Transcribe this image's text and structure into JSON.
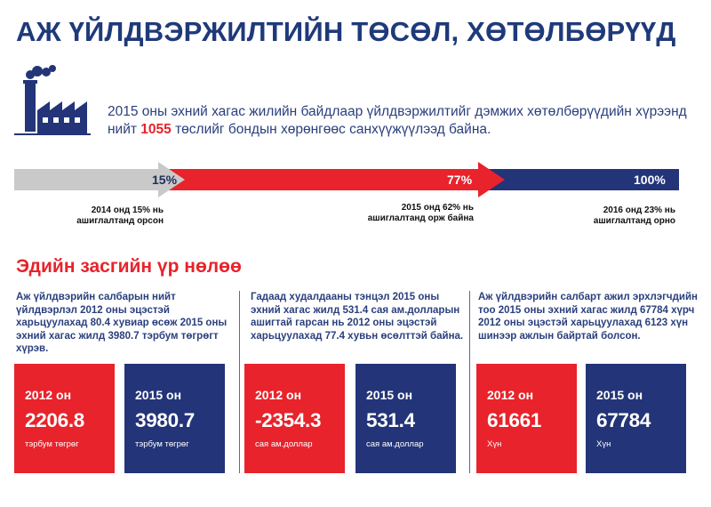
{
  "title": "АЖ ҮЙЛДВЭРЖИЛТИЙН ТӨСӨЛ, ХӨТӨЛБӨРҮҮД",
  "intro": {
    "before": "2015 оны эхний хагас жилийн байдлаар үйлдвэржилтийг дэмжих хөтөлбөрүүдийн хүрээнд нийт ",
    "highlight": "1055",
    "after": " төслийг бондын хөрөнгөөс санхүүжүүлээд байна."
  },
  "progress": {
    "segments": [
      {
        "label": "15%",
        "value": 15,
        "color": "#c9c9c9"
      },
      {
        "label": "77%",
        "value": 77,
        "color": "#e8232b"
      },
      {
        "label": "100%",
        "value": 100,
        "color": "#233478"
      }
    ],
    "notes": [
      {
        "line1": "2014 онд 15% нь",
        "line2": "ашиглалтанд орсон"
      },
      {
        "line1": "2015 онд 62% нь",
        "line2": "ашиглалтанд орж байна"
      },
      {
        "line1": "2016 онд 23% нь",
        "line2": "ашиглалтанд орно"
      }
    ]
  },
  "section_title": "Эдийн засгийн үр нөлөө",
  "columns": [
    {
      "text": "Аж үйлдвэрийн салбарын нийт үйлдвэрлэл 2012 оны эцэстэй харьцуулахад 80.4 хувиар өсөж 2015 оны эхний хагас жилд 3980.7 тэрбум төгрөгт хүрэв.",
      "cards": [
        {
          "year": "2012 он",
          "value": "2206.8",
          "unit": "тэрбум төгрөг",
          "color": "red"
        },
        {
          "year": "2015 он",
          "value": "3980.7",
          "unit": "тэрбум төгрөг",
          "color": "blue"
        }
      ]
    },
    {
      "text": "Гадаад худалдааны тэнцэл 2015 оны эхний хагас жилд 531.4 сая ам.долларын ашигтай гарсан нь 2012 оны эцэстэй харьцуулахад 77.4 хувьн өсөлттэй байна.",
      "cards": [
        {
          "year": "2012 он",
          "value": "-2354.3",
          "unit": "сая ам.доллар",
          "color": "red"
        },
        {
          "year": "2015 он",
          "value": "531.4",
          "unit": "сая ам.доллар",
          "color": "blue"
        }
      ]
    },
    {
      "text": "Аж үйлдвэрийн салбарт ажил эрхлэгчдийн тоо 2015 оны эхний хагас жилд 67784 хүрч 2012 оны эцэстэй харьцуулахад 6123 хүн шинээр ажлын байртай болсон.",
      "cards": [
        {
          "year": "2012 он",
          "value": "61661",
          "unit": "Хүн",
          "color": "red"
        },
        {
          "year": "2015 он",
          "value": "67784",
          "unit": "Хүн",
          "color": "blue"
        }
      ]
    }
  ]
}
